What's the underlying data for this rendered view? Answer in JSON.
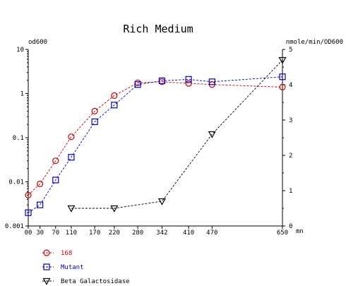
{
  "chart_data": {
    "type": "line",
    "title": "Rich Medium",
    "ylabel_left": "od600",
    "ylabel_right": "nmole/min/OD600",
    "xlabel_unit": "mn",
    "x_ticks": [
      0,
      30,
      70,
      110,
      170,
      220,
      280,
      342,
      410,
      470,
      650
    ],
    "x_tick_labels": [
      "00",
      "30",
      "70",
      "110",
      "170",
      "220",
      "280",
      "342",
      "410",
      "470",
      "650"
    ],
    "xlim": [
      0,
      650
    ],
    "y_left": {
      "scale": "log",
      "lim": [
        0.001,
        10
      ],
      "ticks": [
        10,
        1,
        0.1,
        0.01,
        0.001
      ],
      "tick_labels": [
        "10",
        "1",
        "0.1",
        "0.01",
        "0.001"
      ]
    },
    "y_right": {
      "scale": "linear",
      "lim": [
        0,
        5
      ],
      "ticks": [
        0,
        1,
        2,
        3,
        4,
        5
      ],
      "tick_labels": [
        "0",
        "1",
        "2",
        "3",
        "4",
        "5"
      ]
    },
    "grid": false,
    "legend_position": "bottom-left",
    "series": [
      {
        "name": "168",
        "axis": "left",
        "color": "#cc0000",
        "marker": "circle",
        "x": [
          0,
          30,
          70,
          110,
          170,
          220,
          280,
          342,
          410,
          470,
          650
        ],
        "y": [
          0.005,
          0.009,
          0.03,
          0.105,
          0.4,
          0.9,
          1.75,
          1.85,
          1.7,
          1.6,
          1.4
        ]
      },
      {
        "name": "Mutant",
        "axis": "left",
        "color": "#0000cc",
        "marker": "square",
        "x": [
          0,
          30,
          70,
          110,
          170,
          220,
          280,
          342,
          410,
          470,
          650
        ],
        "y": [
          0.002,
          0.003,
          0.011,
          0.036,
          0.23,
          0.55,
          1.6,
          1.95,
          2.1,
          1.85,
          2.4
        ]
      },
      {
        "name": "Beta Galactosidase",
        "axis": "right",
        "color": "#000000",
        "marker": "triangle-down",
        "x": [
          110,
          220,
          342,
          470,
          650
        ],
        "y": [
          0.5,
          0.5,
          0.7,
          2.6,
          4.7
        ]
      }
    ]
  }
}
